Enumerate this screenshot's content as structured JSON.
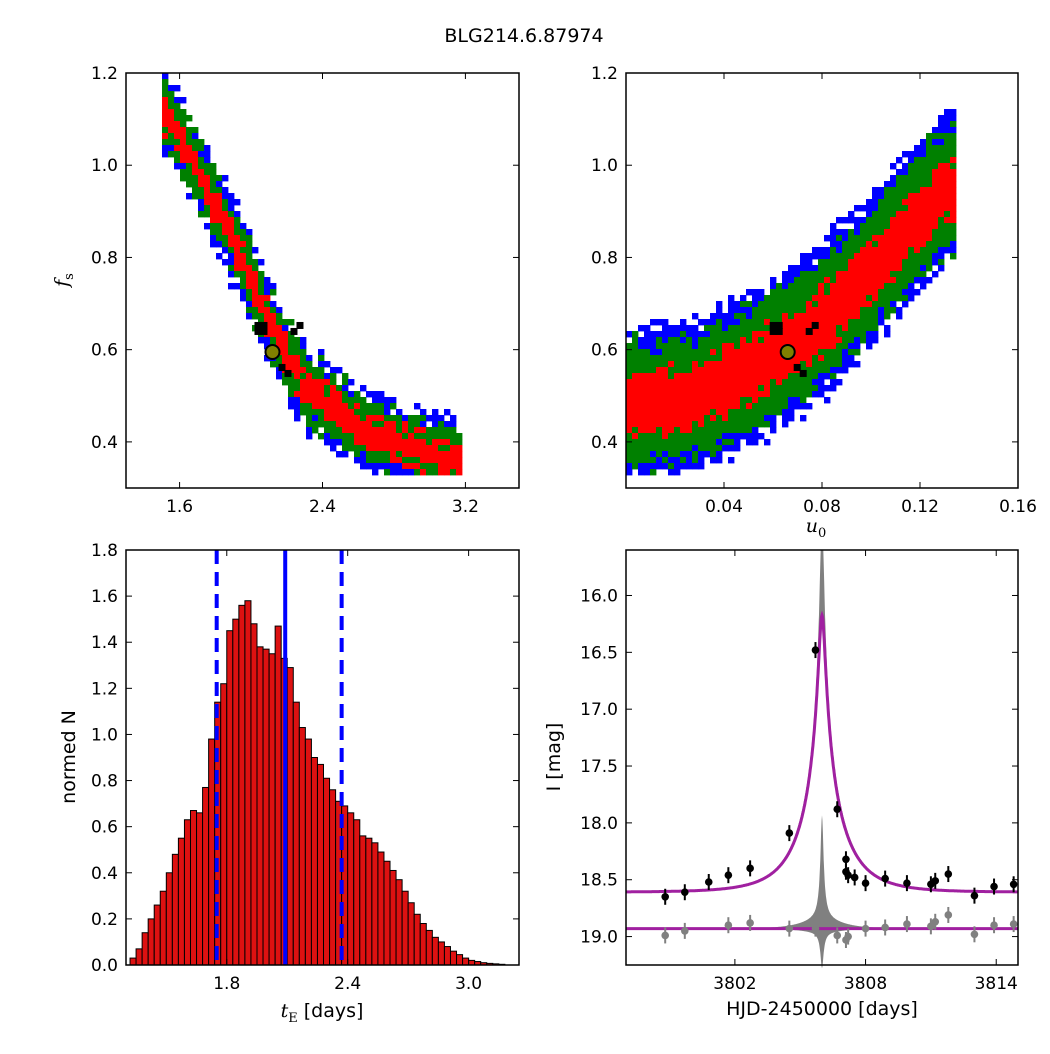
{
  "figure_title": "BLG214.6.87974",
  "colors": {
    "blue": "#0000ff",
    "green": "#008000",
    "red": "#ff0000",
    "black": "#000000",
    "best_fit_marker": "#808000",
    "model_curve": "#a020a0",
    "uncertainty_band": "#808080",
    "hist_bar": "#dd1111"
  },
  "chart_data": [
    {
      "id": "fs_vs_tE",
      "type": "heatmap",
      "title": "",
      "xlabel": "",
      "ylabel": "f",
      "ylabel_sub": "s",
      "xlim": [
        1.3,
        3.5
      ],
      "ylim": [
        0.3,
        1.2
      ],
      "xticks": [
        1.6,
        2.4,
        3.2
      ],
      "xtick_labels": [
        "1.6",
        "2.4",
        "3.2"
      ],
      "yticks": [
        0.4,
        0.6,
        0.8,
        1.0,
        1.2
      ],
      "ytick_labels": [
        "0.4",
        "0.6",
        "0.8",
        "1.0",
        "1.2"
      ],
      "regions": [
        "blue",
        "green",
        "red",
        "black"
      ],
      "band_centerline": [
        [
          1.55,
          1.1
        ],
        [
          1.85,
          0.88
        ],
        [
          2.1,
          0.66
        ],
        [
          2.3,
          0.52
        ],
        [
          2.65,
          0.42
        ],
        [
          3.1,
          0.36
        ]
      ],
      "band_halfwidth": {
        "blue": 0.085,
        "green": 0.065,
        "red": 0.032
      },
      "best_fit": {
        "x": 2.12,
        "y": 0.595
      }
    },
    {
      "id": "fs_vs_u0",
      "type": "heatmap",
      "title": "",
      "xlabel": "u",
      "xlabel_sub": "0",
      "ylabel": "",
      "xlim": [
        0.0,
        0.16
      ],
      "ylim": [
        0.3,
        1.2
      ],
      "xticks": [
        0.04,
        0.08,
        0.12,
        0.16
      ],
      "xtick_labels": [
        "0.04",
        "0.08",
        "0.12",
        "0.16"
      ],
      "yticks": [
        0.4,
        0.6,
        0.8,
        1.0,
        1.2
      ],
      "ytick_labels": [
        "0.4",
        "0.6",
        "0.8",
        "1.0",
        "1.2"
      ],
      "regions": [
        "blue",
        "green",
        "red",
        "black"
      ],
      "band_centerline": [
        [
          0.0,
          0.48
        ],
        [
          0.03,
          0.5
        ],
        [
          0.055,
          0.57
        ],
        [
          0.075,
          0.64
        ],
        [
          0.095,
          0.74
        ],
        [
          0.115,
          0.86
        ],
        [
          0.13,
          0.95
        ]
      ],
      "band_halfwidth": {
        "blue": 0.16,
        "green": 0.13,
        "red": 0.065
      },
      "best_fit": {
        "x": 0.066,
        "y": 0.595
      }
    },
    {
      "id": "tE_histogram",
      "type": "bar",
      "title": "",
      "xlabel": "t",
      "xlabel_sub": "E",
      "xlabel_suffix": " [days]",
      "ylabel": "normed N",
      "xlim": [
        1.3,
        3.25
      ],
      "ylim": [
        0.0,
        1.8
      ],
      "xticks": [
        1.8,
        2.4,
        3.0
      ],
      "xtick_labels": [
        "1.8",
        "2.4",
        "3.0"
      ],
      "yticks": [
        0.0,
        0.2,
        0.4,
        0.6,
        0.8,
        1.0,
        1.2,
        1.4,
        1.6,
        1.8
      ],
      "ytick_labels": [
        "0.0",
        "0.2",
        "0.4",
        "0.6",
        "0.8",
        "1.0",
        "1.2",
        "1.4",
        "1.6",
        "1.8"
      ],
      "bin_start": 1.32,
      "bin_width": 0.03,
      "values": [
        0.03,
        0.07,
        0.14,
        0.2,
        0.26,
        0.32,
        0.4,
        0.48,
        0.55,
        0.63,
        0.67,
        0.66,
        0.77,
        0.98,
        1.14,
        1.22,
        1.45,
        1.5,
        1.56,
        1.58,
        1.48,
        1.38,
        1.37,
        1.35,
        1.47,
        1.33,
        1.29,
        1.14,
        1.03,
        0.98,
        0.9,
        0.87,
        0.81,
        0.76,
        0.71,
        0.69,
        0.66,
        0.63,
        0.56,
        0.55,
        0.53,
        0.49,
        0.45,
        0.41,
        0.37,
        0.32,
        0.27,
        0.22,
        0.18,
        0.15,
        0.12,
        0.1,
        0.08,
        0.06,
        0.045,
        0.03,
        0.02,
        0.015,
        0.01,
        0.007,
        0.005,
        0.003
      ],
      "vlines": [
        {
          "x": 1.75,
          "style": "dashed"
        },
        {
          "x": 2.09,
          "style": "solid"
        },
        {
          "x": 2.37,
          "style": "dashed"
        }
      ]
    },
    {
      "id": "light_curve",
      "type": "line",
      "title": "",
      "xlabel": "HJD-2450000 [days]",
      "ylabel": "I [mag]",
      "xlim": [
        3797.0,
        3815.0
      ],
      "ylim": [
        19.25,
        15.6
      ],
      "xticks": [
        3802,
        3808,
        3814
      ],
      "xtick_labels": [
        "3802",
        "3808",
        "3814"
      ],
      "yticks": [
        16.0,
        16.5,
        17.0,
        17.5,
        18.0,
        18.5,
        19.0
      ],
      "ytick_labels": [
        "16.0",
        "16.5",
        "17.0",
        "17.5",
        "18.0",
        "18.5",
        "19.0"
      ],
      "model": {
        "t0": 3806.0,
        "tE": 2.09,
        "u0": 0.066,
        "fs": 0.595,
        "I_base": 18.61
      },
      "residual_baseline": 18.93,
      "series": [
        {
          "role": "data",
          "x": [
            3798.8,
            3799.7,
            3800.8,
            3801.7,
            3802.7,
            3804.5,
            3805.7,
            3806.7,
            3807.1,
            3807.1,
            3807.2,
            3807.5,
            3808.0,
            3808.9,
            3809.9,
            3811.0,
            3811.2,
            3811.8,
            3813.0,
            3813.9,
            3814.8
          ],
          "y": [
            18.65,
            18.61,
            18.52,
            18.46,
            18.4,
            18.09,
            16.48,
            17.88,
            18.32,
            18.43,
            18.46,
            18.48,
            18.53,
            18.49,
            18.53,
            18.54,
            18.51,
            18.45,
            18.64,
            18.56,
            18.54
          ]
        },
        {
          "role": "residuals",
          "x": [
            3798.8,
            3799.7,
            3801.7,
            3802.7,
            3804.5,
            3805.7,
            3806.7,
            3807.1,
            3807.2,
            3808.0,
            3808.9,
            3809.9,
            3811.0,
            3811.2,
            3811.8,
            3813.0,
            3813.9,
            3814.8
          ],
          "y": [
            18.99,
            18.95,
            18.9,
            18.88,
            18.93,
            18.93,
            18.99,
            19.03,
            19.0,
            18.93,
            18.92,
            18.89,
            18.91,
            18.87,
            18.81,
            18.98,
            18.9,
            18.89
          ]
        }
      ]
    }
  ]
}
